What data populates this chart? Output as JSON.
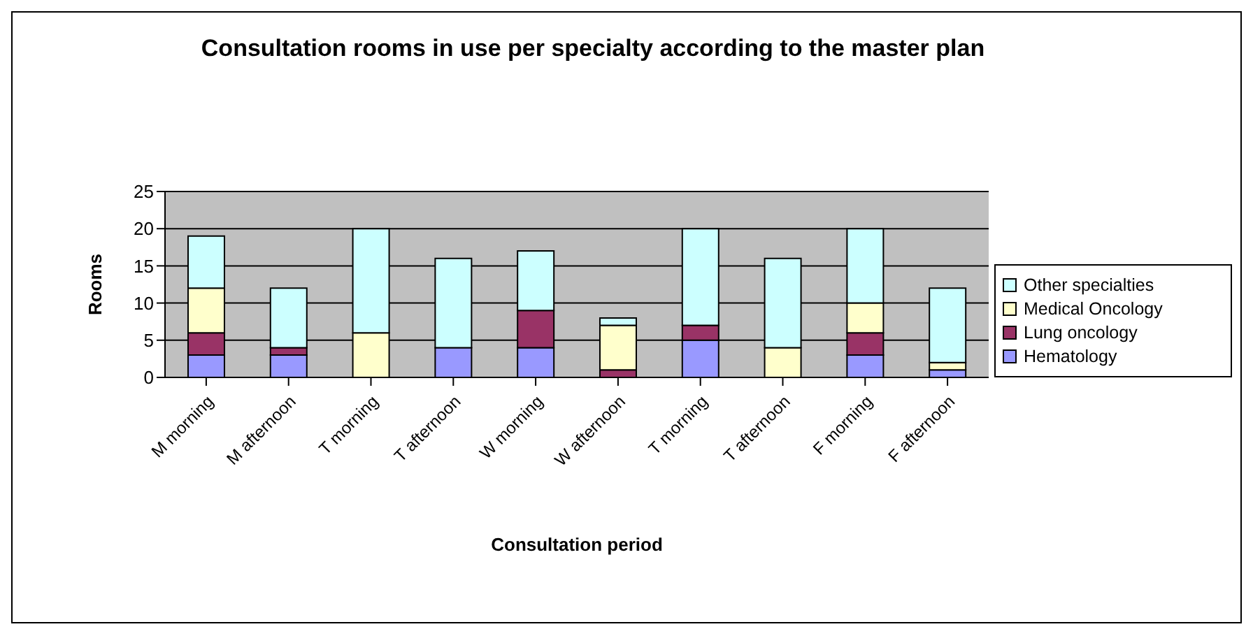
{
  "chart_data": {
    "type": "bar",
    "title": "Consultation rooms in use per specialty according to the master plan",
    "xlabel": "Consultation period",
    "ylabel": "Rooms",
    "categories": [
      "M morning",
      "M afternoon",
      "T morning",
      "T afternoon",
      "W morning",
      "W afternoon",
      "T morning",
      "T afternoon",
      "F morning",
      "F afternoon"
    ],
    "stacked": true,
    "ylim": [
      0,
      25
    ],
    "yticks": [
      0,
      5,
      10,
      15,
      20,
      25
    ],
    "grid": "y",
    "legend": "right",
    "series": [
      {
        "name": "Hematology",
        "color": "#9999ff",
        "values": [
          3,
          3,
          0,
          4,
          4,
          0,
          5,
          0,
          3,
          1
        ]
      },
      {
        "name": "Lung oncology",
        "color": "#993366",
        "values": [
          3,
          1,
          0,
          0,
          5,
          1,
          2,
          0,
          3,
          0
        ]
      },
      {
        "name": "Medical Oncology",
        "color": "#ffffcc",
        "values": [
          6,
          0,
          6,
          0,
          0,
          6,
          0,
          4,
          4,
          1
        ]
      },
      {
        "name": "Other specialties",
        "color": "#ccffff",
        "values": [
          7,
          8,
          14,
          12,
          8,
          1,
          13,
          12,
          10,
          10
        ]
      }
    ]
  }
}
